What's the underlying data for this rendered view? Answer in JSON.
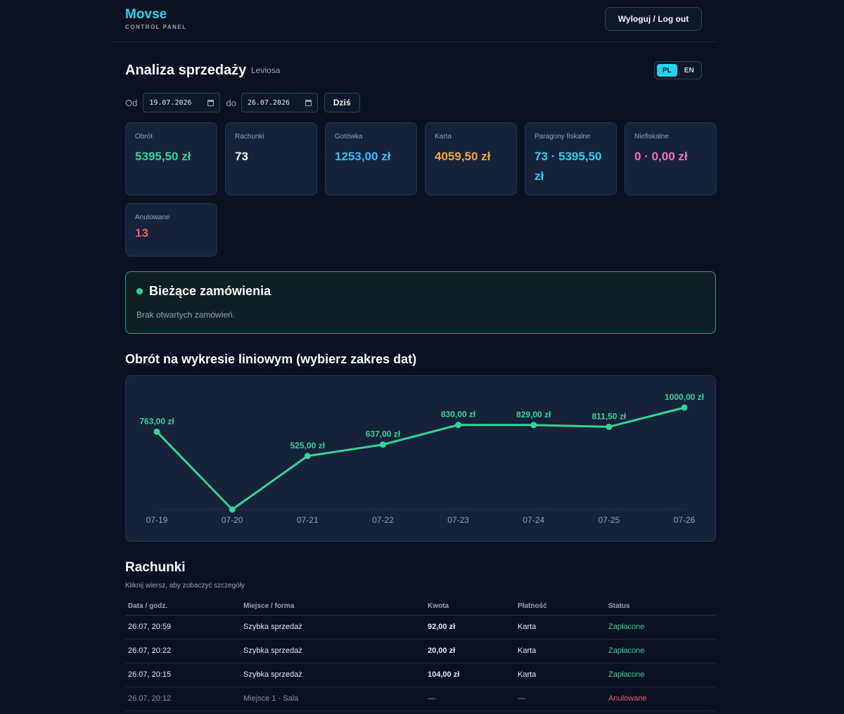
{
  "header": {
    "brand": "Movse",
    "subtitle": "CONTROL PANEL",
    "logout_label": "Wyloguj / Log out"
  },
  "page": {
    "title": "Analiza sprzedaży",
    "venue": "Leviosa",
    "lang": {
      "pl": "PL",
      "en": "EN",
      "active": "PL"
    }
  },
  "filters": {
    "from_label": "Od",
    "from_value": "19.07.2026",
    "to_label": "do",
    "to_value": "26.07.2026",
    "today_label": "Dziś"
  },
  "stats": [
    {
      "label": "Obrót",
      "value": "5395,50 zł",
      "color": "#34d399"
    },
    {
      "label": "Rachunki",
      "value": "73",
      "color": "#f8fafc"
    },
    {
      "label": "Gotówka",
      "value": "1253,00 zł",
      "color": "#38bdf8"
    },
    {
      "label": "Karta",
      "value": "4059,50 zł",
      "color": "#f5a83a"
    },
    {
      "label": "Paragony fiskalne",
      "value": "73 · 5395,50 zł",
      "color": "#22d3ee"
    },
    {
      "label": "Niefiskalne",
      "value": "0 · 0,00 zł",
      "color": "#f472b6"
    },
    {
      "label": "Anulowane",
      "value": "13",
      "color": "#f05a6e"
    }
  ],
  "open_orders": {
    "title": "Bieżące zamówienia",
    "empty_text": "Brak otwartych zamówień."
  },
  "chart_section": {
    "title": "Obrót na wykresie liniowym (wybierz zakres dat)"
  },
  "chart_data": {
    "type": "line",
    "title": "Obrót na wykresie liniowym (wybierz zakres dat)",
    "categories": [
      "07-19",
      "07-20",
      "07-21",
      "07-22",
      "07-23",
      "07-24",
      "07-25",
      "07-26"
    ],
    "values": [
      763.0,
      0,
      525.0,
      637.0,
      830.0,
      829.0,
      811.5,
      1000.0
    ],
    "labels": [
      "763,00 zł",
      "",
      "525,00 zł",
      "637,00 zł",
      "830,00 zł",
      "829,00 zł",
      "811,50 zł",
      "1000,00 zł"
    ],
    "ylim": [
      0,
      1000
    ],
    "xlabel": "",
    "ylabel": "",
    "grid": false,
    "color": "#34d399"
  },
  "bills": {
    "title": "Rachunki",
    "hint": "Kliknij wiersz, aby zobaczyć szczegóły",
    "columns": [
      "Data / godz.",
      "Miejsce / forma",
      "Kwota",
      "Płatność",
      "Status"
    ],
    "rows": [
      {
        "datetime": "26.07, 20:59",
        "place": "Szybka sprzedaż",
        "amount": "92,00 zł",
        "payment": "Karta",
        "status": "Zapłacone",
        "cancelled": false
      },
      {
        "datetime": "26.07, 20:22",
        "place": "Szybka sprzedaż",
        "amount": "20,00 zł",
        "payment": "Karta",
        "status": "Zapłacone",
        "cancelled": false
      },
      {
        "datetime": "26.07, 20:15",
        "place": "Szybka sprzedaż",
        "amount": "104,00 zł",
        "payment": "Karta",
        "status": "Zapłacone",
        "cancelled": false
      },
      {
        "datetime": "26.07, 20:12",
        "place": "Miejsce 1 · Sala",
        "amount": "—",
        "payment": "—",
        "status": "Anulowane",
        "cancelled": true
      }
    ]
  }
}
